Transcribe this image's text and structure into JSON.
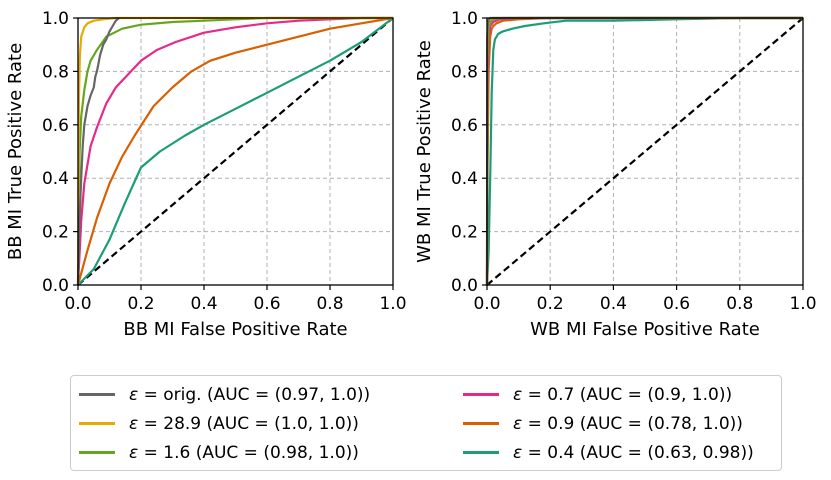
{
  "legend": {
    "items": [
      {
        "symbol": "ε",
        "text": " = orig. (AUC = (0.97, 1.0))",
        "color": "#666666"
      },
      {
        "symbol": "ε",
        "text": " = 28.9 (AUC = (1.0, 1.0))",
        "color": "#e6ab02"
      },
      {
        "symbol": "ε",
        "text": " = 1.6 (AUC = (0.98, 1.0))",
        "color": "#66a61e"
      },
      {
        "symbol": "ε",
        "text": " = 0.7 (AUC = (0.9, 1.0))",
        "color": "#e7298a"
      },
      {
        "symbol": "ε",
        "text": " = 0.9 (AUC = (0.78, 1.0))",
        "color": "#d95f02"
      },
      {
        "symbol": "ε",
        "text": " = 0.4 (AUC = (0.63, 0.98))",
        "color": "#1b9e77"
      }
    ]
  },
  "chart_data": [
    {
      "type": "line",
      "xlabel": "BB MI False Positive Rate",
      "ylabel": "BB MI True Positive Rate",
      "xlim": [
        0,
        1
      ],
      "ylim": [
        0,
        1
      ],
      "xticks": [
        "0.0",
        "0.2",
        "0.4",
        "0.6",
        "0.8",
        "1.0"
      ],
      "yticks": [
        "0.0",
        "0.2",
        "0.4",
        "0.6",
        "0.8",
        "1.0"
      ],
      "grid": true,
      "diagonal": {
        "x": [
          0,
          1
        ],
        "y": [
          0,
          1
        ],
        "color": "#000000",
        "style": "dashed"
      },
      "series": [
        {
          "name": "ε = 0.4",
          "color": "#1b9e77",
          "x": [
            0,
            0.05,
            0.1,
            0.15,
            0.2,
            0.26,
            0.34,
            0.4,
            0.5,
            0.6,
            0.7,
            0.8,
            0.9,
            1.0
          ],
          "y": [
            0,
            0.06,
            0.17,
            0.31,
            0.44,
            0.5,
            0.56,
            0.6,
            0.66,
            0.72,
            0.78,
            0.84,
            0.91,
            1.0
          ]
        },
        {
          "name": "ε = 0.9",
          "color": "#d95f02",
          "x": [
            0,
            0.03,
            0.06,
            0.1,
            0.14,
            0.18,
            0.24,
            0.3,
            0.36,
            0.42,
            0.5,
            0.6,
            0.7,
            0.8,
            0.9,
            1.0
          ],
          "y": [
            0,
            0.13,
            0.25,
            0.38,
            0.48,
            0.56,
            0.67,
            0.74,
            0.8,
            0.84,
            0.87,
            0.9,
            0.93,
            0.96,
            0.98,
            1.0
          ]
        },
        {
          "name": "ε = 0.7",
          "color": "#e7298a",
          "x": [
            0,
            0.01,
            0.02,
            0.04,
            0.06,
            0.09,
            0.12,
            0.16,
            0.2,
            0.25,
            0.31,
            0.4,
            0.5,
            0.6,
            0.7,
            0.8,
            0.9,
            1.0
          ],
          "y": [
            0,
            0.24,
            0.38,
            0.52,
            0.59,
            0.68,
            0.74,
            0.79,
            0.84,
            0.88,
            0.91,
            0.945,
            0.965,
            0.98,
            0.99,
            0.995,
            1.0,
            1.0
          ]
        },
        {
          "name": "ε = 1.6",
          "color": "#66a61e",
          "x": [
            0,
            0.005,
            0.01,
            0.02,
            0.03,
            0.04,
            0.06,
            0.09,
            0.14,
            0.2,
            0.3,
            0.4,
            0.5,
            0.6,
            0.8,
            1.0
          ],
          "y": [
            0,
            0.5,
            0.63,
            0.73,
            0.8,
            0.84,
            0.88,
            0.93,
            0.96,
            0.975,
            0.985,
            0.99,
            0.995,
            1.0,
            1.0,
            1.0
          ]
        },
        {
          "name": "ε = 28.9",
          "color": "#e6ab02",
          "x": [
            0,
            0.003,
            0.006,
            0.01,
            0.02,
            0.03,
            0.05,
            0.08,
            0.12,
            0.2,
            0.3,
            0.5,
            1.0
          ],
          "y": [
            0,
            0.7,
            0.86,
            0.93,
            0.965,
            0.98,
            0.99,
            0.995,
            1.0,
            1.0,
            1.0,
            1.0,
            1.0
          ]
        },
        {
          "name": "ε = orig.",
          "color": "#666666",
          "x": [
            0,
            0.005,
            0.01,
            0.015,
            0.02,
            0.03,
            0.04,
            0.05,
            0.055,
            0.06,
            0.065,
            0.07,
            0.08,
            0.09,
            0.1,
            0.11,
            0.12,
            0.13
          ],
          "y": [
            0,
            0.25,
            0.4,
            0.52,
            0.6,
            0.67,
            0.71,
            0.74,
            0.78,
            0.8,
            0.83,
            0.86,
            0.9,
            0.92,
            0.95,
            0.97,
            0.99,
            1.0
          ]
        }
      ]
    },
    {
      "type": "line",
      "xlabel": "WB MI False Positive Rate",
      "ylabel": "WB MI True Positive Rate",
      "xlim": [
        0,
        1
      ],
      "ylim": [
        0,
        1
      ],
      "xticks": [
        "0.0",
        "0.2",
        "0.4",
        "0.6",
        "0.8",
        "1.0"
      ],
      "yticks": [
        "0.0",
        "0.2",
        "0.4",
        "0.6",
        "0.8",
        "1.0"
      ],
      "grid": true,
      "diagonal": {
        "x": [
          0,
          1
        ],
        "y": [
          0,
          1
        ],
        "color": "#000000",
        "style": "dashed"
      },
      "series": [
        {
          "name": "ε = 0.4",
          "color": "#1b9e77",
          "x": [
            0,
            0.005,
            0.01,
            0.015,
            0.02,
            0.025,
            0.035,
            0.05,
            0.08,
            0.12,
            0.18,
            0.25,
            0.4,
            0.6,
            0.8,
            1.0
          ],
          "y": [
            0,
            0.12,
            0.4,
            0.72,
            0.88,
            0.92,
            0.94,
            0.95,
            0.96,
            0.97,
            0.98,
            0.99,
            0.99,
            0.995,
            1.0,
            1.0
          ]
        },
        {
          "name": "ε = 0.9",
          "color": "#d95f02",
          "x": [
            0,
            0.002,
            0.005,
            0.01,
            0.015,
            0.02,
            0.03,
            0.05,
            0.1,
            0.2,
            0.4,
            1.0
          ],
          "y": [
            0,
            0.45,
            0.8,
            0.93,
            0.96,
            0.97,
            0.98,
            0.99,
            0.995,
            1.0,
            1.0,
            1.0
          ]
        },
        {
          "name": "ε = 0.7",
          "color": "#e7298a",
          "x": [
            0,
            0.002,
            0.005,
            0.01,
            0.02,
            0.04,
            0.1,
            0.3,
            1.0
          ],
          "y": [
            0,
            0.7,
            0.92,
            0.97,
            0.985,
            0.995,
            1.0,
            1.0,
            1.0
          ]
        },
        {
          "name": "ε = 1.6",
          "color": "#66a61e",
          "x": [
            0,
            0.002,
            0.005,
            0.01,
            0.02,
            0.05,
            0.2,
            1.0
          ],
          "y": [
            0,
            0.85,
            0.96,
            0.985,
            0.995,
            1.0,
            1.0,
            1.0
          ]
        },
        {
          "name": "ε = 28.9",
          "color": "#e6ab02",
          "x": [
            0,
            0.001,
            0.003,
            0.006,
            0.01,
            0.02,
            0.05,
            1.0
          ],
          "y": [
            0,
            0.9,
            0.97,
            0.99,
            0.995,
            1.0,
            1.0,
            1.0
          ]
        },
        {
          "name": "ε = orig.",
          "color": "#666666",
          "x": [
            0,
            0.001,
            0.003,
            0.006,
            0.01,
            0.03,
            1.0
          ],
          "y": [
            0,
            0.93,
            0.98,
            0.995,
            1.0,
            1.0,
            1.0
          ]
        }
      ]
    }
  ]
}
